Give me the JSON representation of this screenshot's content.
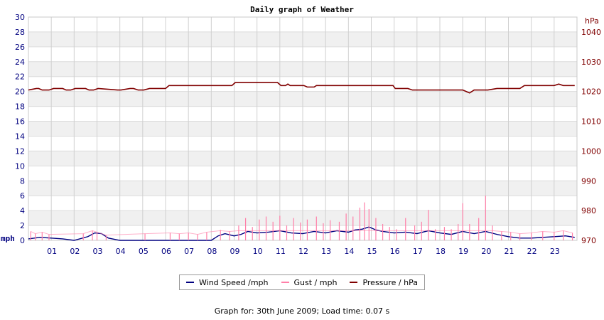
{
  "chart_data": {
    "type": "line",
    "title": "Daily graph of Weather",
    "left_axis": {
      "unit": "mph",
      "ylim": [
        0,
        30
      ],
      "ticks": [
        0,
        2,
        4,
        6,
        8,
        10,
        12,
        14,
        16,
        18,
        20,
        22,
        24,
        26,
        28,
        30
      ],
      "color": "#000080"
    },
    "right_axis": {
      "unit": "hPa",
      "ylim": [
        970,
        1045
      ],
      "ticks": [
        970,
        980,
        990,
        1000,
        1010,
        1020,
        1030,
        1040
      ],
      "color": "#800000"
    },
    "x_ticks": [
      "01",
      "02",
      "03",
      "04",
      "05",
      "06",
      "07",
      "08",
      "09",
      "10",
      "11",
      "12",
      "13",
      "14",
      "15",
      "16",
      "17",
      "18",
      "19",
      "20",
      "21",
      "22",
      "23"
    ],
    "xlim": [
      0,
      24
    ],
    "grid": true,
    "series": [
      {
        "name": "Wind Speed /mph",
        "color": "#000080",
        "axis": "left",
        "x": [
          0,
          0.5,
          1,
          1.5,
          2,
          2.6,
          2.9,
          3.2,
          3.5,
          4,
          5,
          6,
          7,
          8,
          8.3,
          8.6,
          9,
          9.3,
          9.6,
          10,
          10.5,
          11,
          11.5,
          12,
          12.5,
          13,
          13.5,
          14,
          14.3,
          14.6,
          14.9,
          15.2,
          15.5,
          16,
          16.5,
          17,
          17.5,
          18,
          18.5,
          19,
          19.5,
          20,
          20.5,
          21,
          21.5,
          22,
          22.5,
          23,
          23.5,
          23.9
        ],
        "values": [
          0.2,
          0.4,
          0.3,
          0.2,
          0,
          0.5,
          1.0,
          0.9,
          0.3,
          0,
          0,
          0,
          0,
          0,
          0.6,
          0.9,
          0.6,
          0.8,
          1.2,
          1.0,
          1.1,
          1.3,
          1.0,
          0.9,
          1.2,
          1.0,
          1.3,
          1.1,
          1.4,
          1.5,
          1.8,
          1.4,
          1.2,
          1.0,
          1.1,
          0.9,
          1.3,
          1.0,
          0.8,
          1.2,
          0.9,
          1.2,
          0.8,
          0.5,
          0.3,
          0.3,
          0.4,
          0.5,
          0.6,
          0.4
        ]
      },
      {
        "name": "Gust / mph",
        "color": "#ff7fa8",
        "axis": "left",
        "x": [
          0.1,
          0.3,
          0.6,
          0.9,
          2.4,
          2.8,
          3.0,
          3.4,
          5.1,
          6.2,
          6.6,
          7.0,
          7.4,
          7.8,
          8.4,
          8.8,
          9.2,
          9.5,
          9.8,
          10.1,
          10.4,
          10.7,
          11.0,
          11.3,
          11.6,
          11.9,
          12.2,
          12.6,
          12.9,
          13.2,
          13.6,
          13.9,
          14.2,
          14.5,
          14.7,
          14.9,
          15.2,
          15.5,
          15.8,
          16.1,
          16.5,
          16.9,
          17.2,
          17.5,
          17.8,
          18.2,
          18.5,
          18.8,
          19.0,
          19.3,
          19.7,
          20.0,
          20.3,
          20.7,
          21.1,
          21.5,
          22.0,
          22.5,
          23.0,
          23.4,
          23.8
        ],
        "values": [
          1.2,
          0.9,
          1.1,
          0.8,
          0.9,
          1.3,
          1.1,
          0.7,
          0.9,
          1.0,
          0.9,
          1.0,
          0.8,
          1.1,
          1.4,
          1.2,
          2.0,
          3.0,
          1.8,
          2.8,
          3.2,
          2.5,
          3.3,
          2.0,
          3.0,
          2.4,
          2.8,
          3.2,
          2.3,
          2.7,
          2.5,
          3.6,
          3.2,
          4.4,
          5.1,
          4.2,
          3.0,
          2.2,
          1.8,
          1.5,
          3.0,
          2.0,
          2.5,
          4.1,
          1.5,
          1.8,
          1.5,
          2.2,
          5.0,
          2.2,
          3.0,
          6.0,
          2.0,
          1.2,
          1.1,
          0.9,
          1.0,
          1.2,
          1.1,
          1.3,
          1.0
        ]
      },
      {
        "name": "Pressure / hPa",
        "color": "#800000",
        "axis": "right",
        "x": [
          0,
          0.35,
          0.45,
          0.6,
          0.9,
          1.1,
          1.5,
          1.65,
          1.85,
          2.05,
          2.5,
          2.65,
          2.85,
          3.05,
          3.9,
          4.05,
          4.45,
          4.6,
          4.8,
          5.05,
          5.3,
          5.45,
          6.0,
          6.15,
          8.9,
          9.05,
          9.2,
          10.9,
          11.05,
          11.25,
          11.35,
          11.45,
          12.05,
          12.2,
          12.35,
          12.5,
          12.6,
          14.0,
          15.95,
          16.05,
          16.6,
          16.8,
          18.3,
          19.0,
          19.15,
          19.3,
          19.5,
          19.95,
          20.1,
          20.5,
          21.5,
          21.7,
          22.6,
          23.0,
          23.2,
          23.4,
          23.9
        ],
        "values": [
          1020.5,
          1021,
          1021,
          1020.5,
          1020.5,
          1021,
          1021,
          1020.5,
          1020.5,
          1021,
          1021,
          1020.5,
          1020.5,
          1021,
          1020.5,
          1020.5,
          1021,
          1021,
          1020.5,
          1020.5,
          1021,
          1021,
          1021,
          1022,
          1022,
          1023,
          1023,
          1023,
          1022,
          1022,
          1022.5,
          1022,
          1022,
          1021.5,
          1021.5,
          1021.5,
          1022,
          1022,
          1022,
          1021,
          1021,
          1020.5,
          1020.5,
          1020.5,
          1020,
          1019.5,
          1020.5,
          1020.5,
          1020.5,
          1021,
          1021,
          1022,
          1022,
          1022,
          1022.5,
          1022,
          1022
        ]
      }
    ]
  },
  "legend": {
    "wind_label": "Wind Speed /mph",
    "gust_label": "Gust / mph",
    "pressure_label": "Pressure / hPa"
  },
  "footer": {
    "text": "Graph for: 30th June 2009; Load time: 0.07 s"
  }
}
